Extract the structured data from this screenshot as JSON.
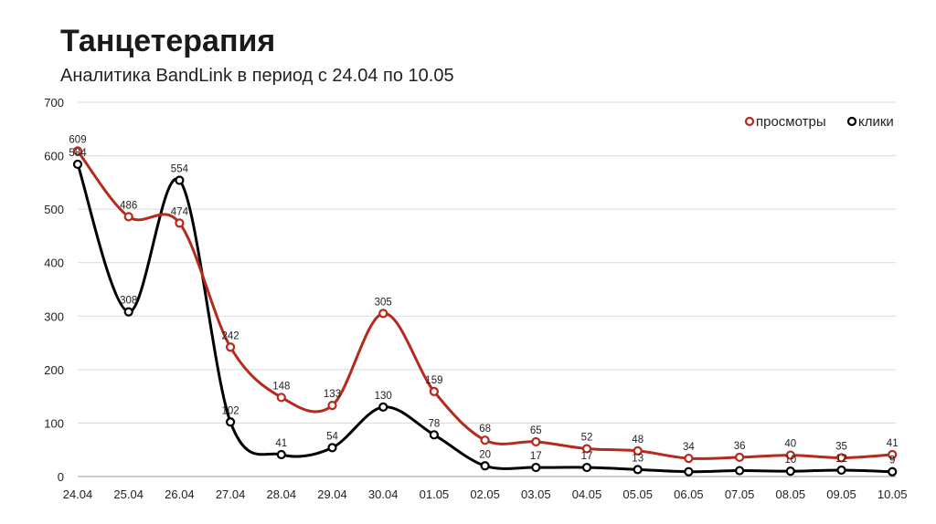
{
  "header": {
    "title": "Танцетерапия",
    "subtitle": "Аналитика BandLink в период с 24.04 по 10.05"
  },
  "chart_data": {
    "type": "line",
    "title": "",
    "xlabel": "",
    "ylabel": "",
    "ylim": [
      0,
      700
    ],
    "yticks": [
      0,
      100,
      200,
      300,
      400,
      500,
      600,
      700
    ],
    "grid": true,
    "legend_position": "top-right",
    "categories": [
      "24.04",
      "25.04",
      "26.04",
      "27.04",
      "28.04",
      "29.04",
      "30.04",
      "01.05",
      "02.05",
      "03.05",
      "04.05",
      "05.05",
      "06.05",
      "07.05",
      "08.05",
      "09.05",
      "10.05"
    ],
    "series": [
      {
        "name": "просмотры",
        "color": "#b52a1c",
        "values": [
          609,
          486,
          474,
          242,
          148,
          133,
          305,
          159,
          68,
          65,
          52,
          48,
          34,
          36,
          40,
          35,
          41
        ],
        "labels": [
          "609",
          "486",
          "474",
          "242",
          "148",
          "133",
          "305",
          "159",
          "68",
          "65",
          "52",
          "48",
          "34",
          "36",
          "40",
          "35",
          "41"
        ]
      },
      {
        "name": "клики",
        "color": "#000000",
        "values": [
          584,
          308,
          554,
          102,
          41,
          54,
          130,
          78,
          20,
          17,
          17,
          13,
          9,
          11,
          10,
          12,
          9
        ],
        "labels": [
          "584",
          "308",
          "554",
          "102",
          "41",
          "54",
          "130",
          "78",
          "20",
          "17",
          "17",
          "13",
          "",
          "",
          "10",
          "12",
          "9"
        ]
      }
    ]
  }
}
